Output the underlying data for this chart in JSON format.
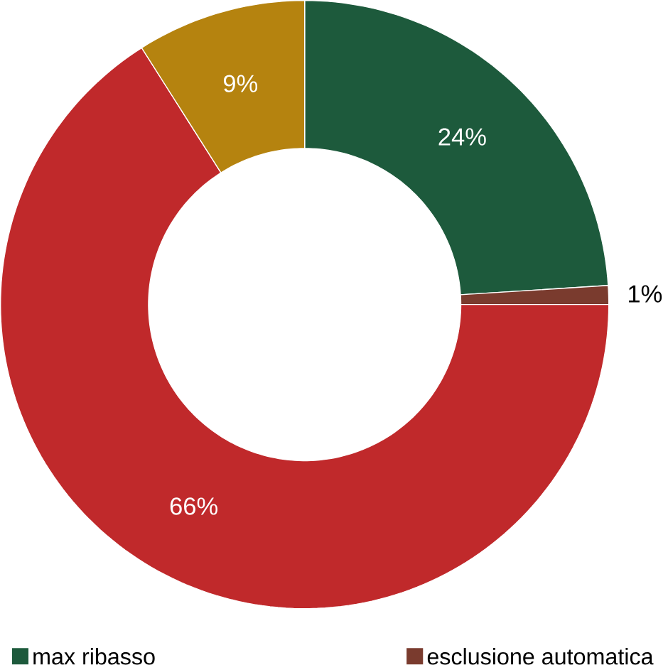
{
  "chart_data": {
    "type": "donut",
    "categories": [
      "max ribasso",
      "esclusione automatica",
      null,
      null
    ],
    "values": [
      24,
      1,
      66,
      9
    ],
    "colors": [
      "#1d5a3c",
      "#7a3b2e",
      "#c0292b",
      "#b5830f"
    ],
    "value_labels": [
      "24%",
      "1%",
      "66%",
      "9%"
    ],
    "legend": "bottom"
  }
}
